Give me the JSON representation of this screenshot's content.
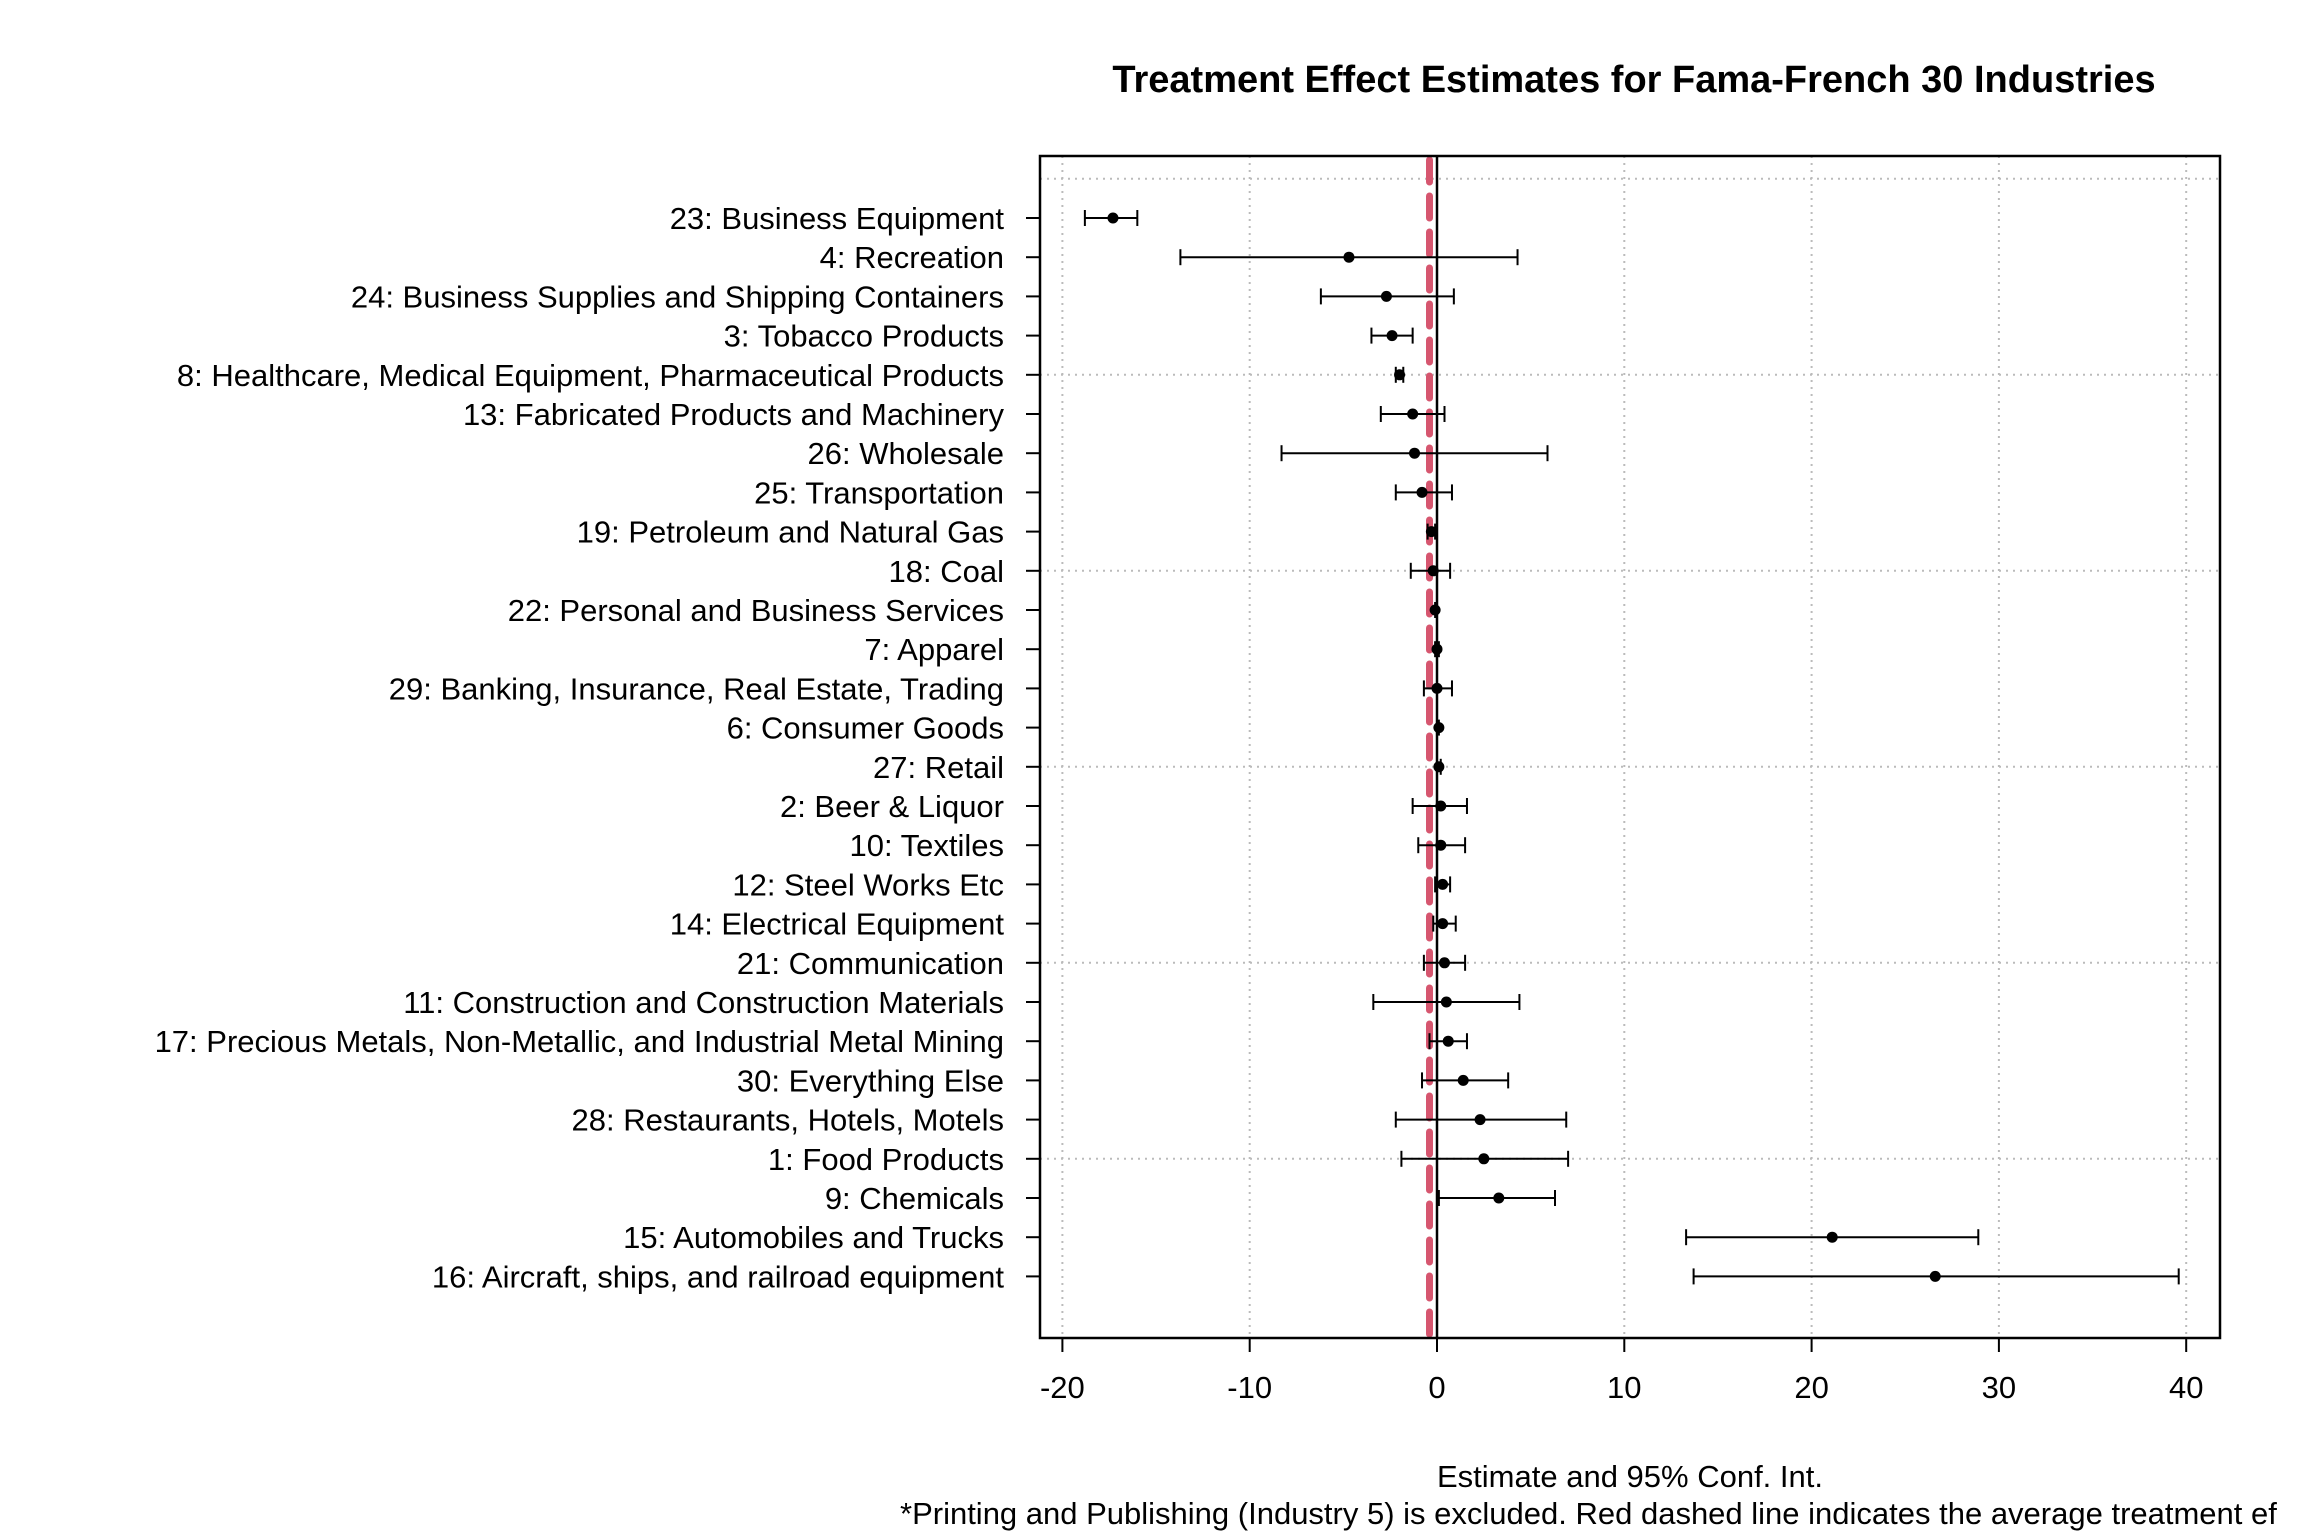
{
  "chart_data": {
    "type": "scatter",
    "title": "Treatment Effect Estimates for Fama-French 30 Industries",
    "xlabel": "Estimate and 95% Conf. Int.",
    "note": "*Printing and Publishing (Industry 5) is excluded. Red dashed line indicates the average treatment ef",
    "xlim": [
      -21,
      42
    ],
    "x_ticks": [
      -20,
      -10,
      0,
      10,
      20,
      30,
      40
    ],
    "grid": true,
    "reference_lines": {
      "zero": 0,
      "average_effect": -0.4
    },
    "colors": {
      "point": "#000000",
      "average_line": "#d6566f",
      "grid": "#bbbbbb"
    },
    "categories": [
      "23: Business Equipment",
      "4: Recreation",
      "24: Business Supplies and Shipping Containers",
      "3: Tobacco Products",
      "8: Healthcare, Medical Equipment, Pharmaceutical Products",
      "13: Fabricated Products and Machinery",
      "26: Wholesale",
      "25: Transportation",
      "19: Petroleum and Natural Gas",
      "18: Coal",
      "22: Personal and Business Services",
      "7: Apparel",
      "29: Banking, Insurance, Real Estate, Trading",
      "6: Consumer Goods",
      "27: Retail",
      "2: Beer & Liquor",
      "10: Textiles",
      "12: Steel Works Etc",
      "14: Electrical Equipment",
      "21: Communication",
      "11: Construction and Construction Materials",
      "17: Precious Metals, Non-Metallic, and Industrial Metal Mining",
      "30: Everything Else",
      "28: Restaurants, Hotels, Motels",
      "1: Food Products",
      "9: Chemicals",
      "15: Automobiles and Trucks",
      "16: Aircraft, ships, and railroad equipment"
    ],
    "estimates": [
      -17.3,
      -4.7,
      -2.7,
      -2.4,
      -2.0,
      -1.3,
      -1.2,
      -0.8,
      -0.3,
      -0.2,
      -0.1,
      0.0,
      0.0,
      0.1,
      0.1,
      0.2,
      0.2,
      0.3,
      0.3,
      0.4,
      0.5,
      0.6,
      1.4,
      2.3,
      2.5,
      3.3,
      21.1,
      26.6
    ],
    "ci_lower": [
      -18.8,
      -13.7,
      -6.2,
      -3.5,
      -2.2,
      -3.0,
      -8.3,
      -2.2,
      -0.5,
      -1.4,
      -0.1,
      -0.1,
      -0.7,
      0.0,
      0.0,
      -1.3,
      -1.0,
      -0.1,
      -0.2,
      -0.7,
      -3.4,
      -0.4,
      -0.8,
      -2.2,
      -1.9,
      0.1,
      13.3,
      13.7
    ],
    "ci_upper": [
      -16.0,
      4.3,
      0.9,
      -1.3,
      -1.8,
      0.4,
      5.9,
      0.8,
      -0.1,
      0.7,
      0.0,
      0.1,
      0.8,
      0.1,
      0.2,
      1.6,
      1.5,
      0.7,
      1.0,
      1.5,
      4.4,
      1.6,
      3.8,
      6.9,
      7.0,
      6.3,
      28.9,
      39.6
    ]
  }
}
